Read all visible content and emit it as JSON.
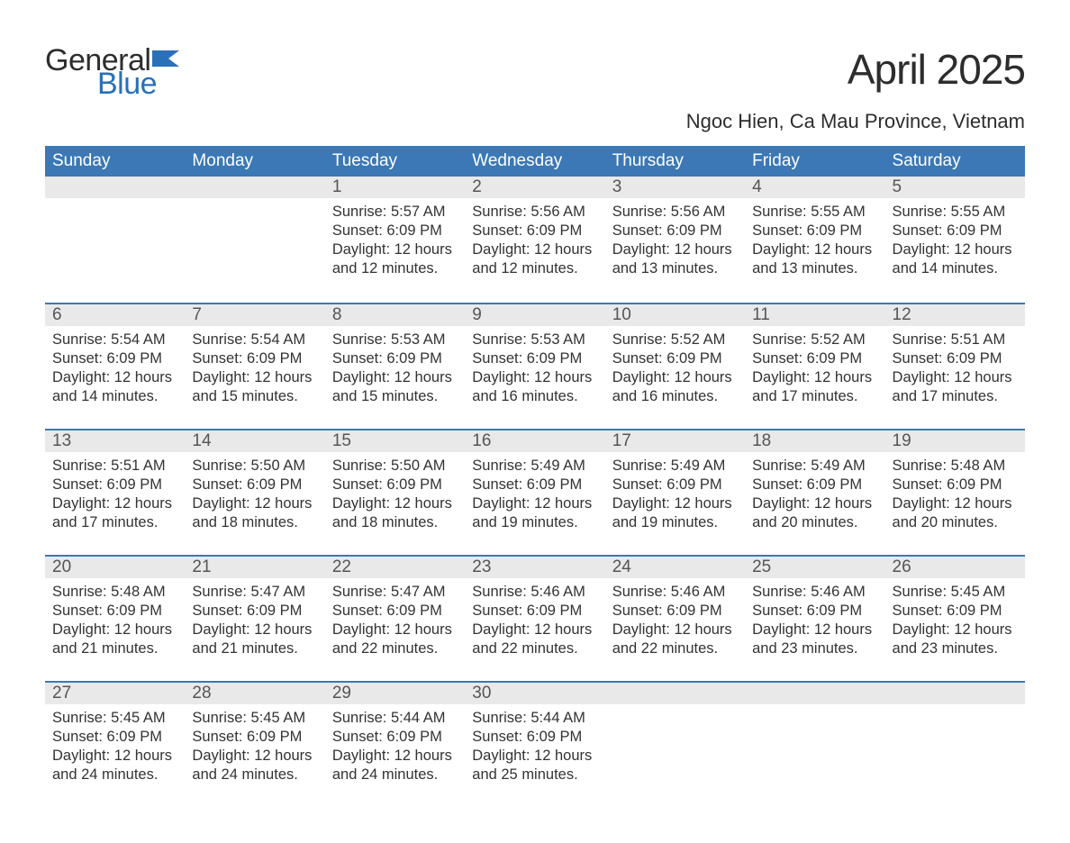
{
  "brand": {
    "word1": "General",
    "word2": "Blue",
    "flag_color": "#2a70b8"
  },
  "title": "April 2025",
  "subtitle": "Ngoc Hien, Ca Mau Province, Vietnam",
  "colors": {
    "header_bg": "#3b78b5",
    "header_text": "#ffffff",
    "daynum_bg": "#e9e9e9",
    "daynum_text": "#555555",
    "body_text": "#333333",
    "rule": "#3b78b5",
    "logo_blue": "#2a70b8",
    "page_bg": "#ffffff"
  },
  "font": {
    "family": "Arial",
    "title_size": 46,
    "subtitle_size": 22,
    "dow_size": 19,
    "daynum_size": 19,
    "body_size": 16.5
  },
  "dow": [
    "Sunday",
    "Monday",
    "Tuesday",
    "Wednesday",
    "Thursday",
    "Friday",
    "Saturday"
  ],
  "weeks": [
    [
      {
        "n": "",
        "sunrise": "",
        "sunset": "",
        "daylight": ""
      },
      {
        "n": "",
        "sunrise": "",
        "sunset": "",
        "daylight": ""
      },
      {
        "n": "1",
        "sunrise": "Sunrise: 5:57 AM",
        "sunset": "Sunset: 6:09 PM",
        "daylight": "Daylight: 12 hours and 12 minutes."
      },
      {
        "n": "2",
        "sunrise": "Sunrise: 5:56 AM",
        "sunset": "Sunset: 6:09 PM",
        "daylight": "Daylight: 12 hours and 12 minutes."
      },
      {
        "n": "3",
        "sunrise": "Sunrise: 5:56 AM",
        "sunset": "Sunset: 6:09 PM",
        "daylight": "Daylight: 12 hours and 13 minutes."
      },
      {
        "n": "4",
        "sunrise": "Sunrise: 5:55 AM",
        "sunset": "Sunset: 6:09 PM",
        "daylight": "Daylight: 12 hours and 13 minutes."
      },
      {
        "n": "5",
        "sunrise": "Sunrise: 5:55 AM",
        "sunset": "Sunset: 6:09 PM",
        "daylight": "Daylight: 12 hours and 14 minutes."
      }
    ],
    [
      {
        "n": "6",
        "sunrise": "Sunrise: 5:54 AM",
        "sunset": "Sunset: 6:09 PM",
        "daylight": "Daylight: 12 hours and 14 minutes."
      },
      {
        "n": "7",
        "sunrise": "Sunrise: 5:54 AM",
        "sunset": "Sunset: 6:09 PM",
        "daylight": "Daylight: 12 hours and 15 minutes."
      },
      {
        "n": "8",
        "sunrise": "Sunrise: 5:53 AM",
        "sunset": "Sunset: 6:09 PM",
        "daylight": "Daylight: 12 hours and 15 minutes."
      },
      {
        "n": "9",
        "sunrise": "Sunrise: 5:53 AM",
        "sunset": "Sunset: 6:09 PM",
        "daylight": "Daylight: 12 hours and 16 minutes."
      },
      {
        "n": "10",
        "sunrise": "Sunrise: 5:52 AM",
        "sunset": "Sunset: 6:09 PM",
        "daylight": "Daylight: 12 hours and 16 minutes."
      },
      {
        "n": "11",
        "sunrise": "Sunrise: 5:52 AM",
        "sunset": "Sunset: 6:09 PM",
        "daylight": "Daylight: 12 hours and 17 minutes."
      },
      {
        "n": "12",
        "sunrise": "Sunrise: 5:51 AM",
        "sunset": "Sunset: 6:09 PM",
        "daylight": "Daylight: 12 hours and 17 minutes."
      }
    ],
    [
      {
        "n": "13",
        "sunrise": "Sunrise: 5:51 AM",
        "sunset": "Sunset: 6:09 PM",
        "daylight": "Daylight: 12 hours and 17 minutes."
      },
      {
        "n": "14",
        "sunrise": "Sunrise: 5:50 AM",
        "sunset": "Sunset: 6:09 PM",
        "daylight": "Daylight: 12 hours and 18 minutes."
      },
      {
        "n": "15",
        "sunrise": "Sunrise: 5:50 AM",
        "sunset": "Sunset: 6:09 PM",
        "daylight": "Daylight: 12 hours and 18 minutes."
      },
      {
        "n": "16",
        "sunrise": "Sunrise: 5:49 AM",
        "sunset": "Sunset: 6:09 PM",
        "daylight": "Daylight: 12 hours and 19 minutes."
      },
      {
        "n": "17",
        "sunrise": "Sunrise: 5:49 AM",
        "sunset": "Sunset: 6:09 PM",
        "daylight": "Daylight: 12 hours and 19 minutes."
      },
      {
        "n": "18",
        "sunrise": "Sunrise: 5:49 AM",
        "sunset": "Sunset: 6:09 PM",
        "daylight": "Daylight: 12 hours and 20 minutes."
      },
      {
        "n": "19",
        "sunrise": "Sunrise: 5:48 AM",
        "sunset": "Sunset: 6:09 PM",
        "daylight": "Daylight: 12 hours and 20 minutes."
      }
    ],
    [
      {
        "n": "20",
        "sunrise": "Sunrise: 5:48 AM",
        "sunset": "Sunset: 6:09 PM",
        "daylight": "Daylight: 12 hours and 21 minutes."
      },
      {
        "n": "21",
        "sunrise": "Sunrise: 5:47 AM",
        "sunset": "Sunset: 6:09 PM",
        "daylight": "Daylight: 12 hours and 21 minutes."
      },
      {
        "n": "22",
        "sunrise": "Sunrise: 5:47 AM",
        "sunset": "Sunset: 6:09 PM",
        "daylight": "Daylight: 12 hours and 22 minutes."
      },
      {
        "n": "23",
        "sunrise": "Sunrise: 5:46 AM",
        "sunset": "Sunset: 6:09 PM",
        "daylight": "Daylight: 12 hours and 22 minutes."
      },
      {
        "n": "24",
        "sunrise": "Sunrise: 5:46 AM",
        "sunset": "Sunset: 6:09 PM",
        "daylight": "Daylight: 12 hours and 22 minutes."
      },
      {
        "n": "25",
        "sunrise": "Sunrise: 5:46 AM",
        "sunset": "Sunset: 6:09 PM",
        "daylight": "Daylight: 12 hours and 23 minutes."
      },
      {
        "n": "26",
        "sunrise": "Sunrise: 5:45 AM",
        "sunset": "Sunset: 6:09 PM",
        "daylight": "Daylight: 12 hours and 23 minutes."
      }
    ],
    [
      {
        "n": "27",
        "sunrise": "Sunrise: 5:45 AM",
        "sunset": "Sunset: 6:09 PM",
        "daylight": "Daylight: 12 hours and 24 minutes."
      },
      {
        "n": "28",
        "sunrise": "Sunrise: 5:45 AM",
        "sunset": "Sunset: 6:09 PM",
        "daylight": "Daylight: 12 hours and 24 minutes."
      },
      {
        "n": "29",
        "sunrise": "Sunrise: 5:44 AM",
        "sunset": "Sunset: 6:09 PM",
        "daylight": "Daylight: 12 hours and 24 minutes."
      },
      {
        "n": "30",
        "sunrise": "Sunrise: 5:44 AM",
        "sunset": "Sunset: 6:09 PM",
        "daylight": "Daylight: 12 hours and 25 minutes."
      },
      {
        "n": "",
        "sunrise": "",
        "sunset": "",
        "daylight": ""
      },
      {
        "n": "",
        "sunrise": "",
        "sunset": "",
        "daylight": ""
      },
      {
        "n": "",
        "sunrise": "",
        "sunset": "",
        "daylight": ""
      }
    ]
  ]
}
